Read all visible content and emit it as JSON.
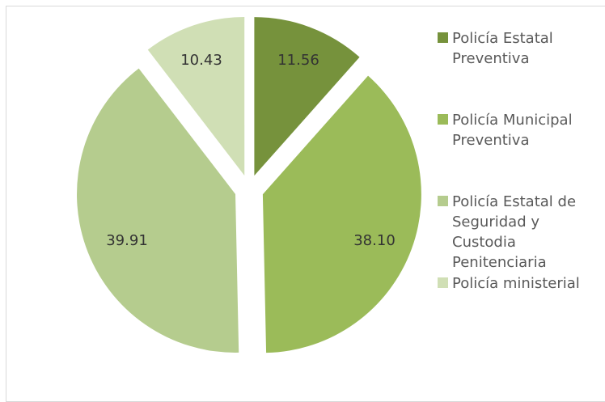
{
  "chart_data": {
    "type": "pie",
    "categories": [
      "Policía Estatal Preventiva",
      "Policía Municipal Preventiva",
      "Policía Estatal de Seguridad y Custodia Penitenciaria",
      "Policía ministerial"
    ],
    "values": [
      11.56,
      38.1,
      39.91,
      10.43
    ],
    "value_labels": [
      "11.56",
      "38.10",
      "39.91",
      "10.43"
    ],
    "colors": [
      "#76923c",
      "#9bbb59",
      "#b5cc8e",
      "#d0dfb5"
    ],
    "legend_position": "right",
    "exploded": true
  },
  "legend": {
    "items": [
      {
        "lines": [
          "Policía Estatal",
          "Preventiva"
        ]
      },
      {
        "lines": [
          "Policía Municipal",
          "Preventiva"
        ]
      },
      {
        "lines": [
          "Policía Estatal de",
          "Seguridad y",
          "Custodia",
          "Penitenciaria"
        ]
      },
      {
        "lines": [
          "Policía ministerial"
        ]
      }
    ]
  }
}
